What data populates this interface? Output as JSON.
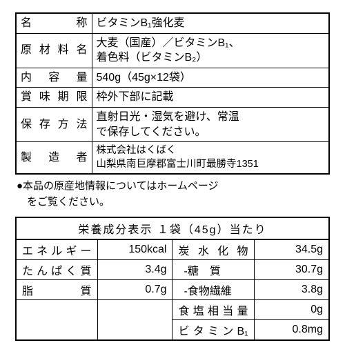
{
  "info": {
    "rows": [
      {
        "label": "名　　称",
        "value": "ビタミンB₁強化麦"
      },
      {
        "label": "原材料名",
        "value": "大麦（国産）／ビタミンB₁、\n着色料（ビタミンB₂）"
      },
      {
        "label": "内 容 量",
        "value": "540g（45g×12袋）"
      },
      {
        "label": "賞味期限",
        "value": "枠外下部に記載"
      },
      {
        "label": "保存方法",
        "value": "直射日光・湿気を避け、常温\nで保存してください。"
      },
      {
        "label": "製 造 者",
        "value": "株式会社はくばく\n山梨県南巨摩郡富士川町最勝寺1351"
      }
    ]
  },
  "note": "●本品の原産地情報についてはホームページ\n　をご覧ください。",
  "nutrition": {
    "title": "栄養成分表示 １袋（45g）当たり",
    "left": [
      {
        "label": "エネルギー",
        "value": "150kcal"
      },
      {
        "label": "たんぱく質",
        "value": "3.4g"
      },
      {
        "label": "脂　　質",
        "value": "0.7g"
      }
    ],
    "right": [
      {
        "label": "炭水化物",
        "value": "34.5g",
        "sub": false
      },
      {
        "label": "-糖　質",
        "value": "30.7g",
        "sub": true
      },
      {
        "label": "-食物繊維",
        "value": "3.8g",
        "sub": true
      },
      {
        "label": "食塩相当量",
        "value": "0g",
        "sub": false
      },
      {
        "label": "ビタミンB₁",
        "value": "0.8mg",
        "sub": false
      }
    ]
  }
}
